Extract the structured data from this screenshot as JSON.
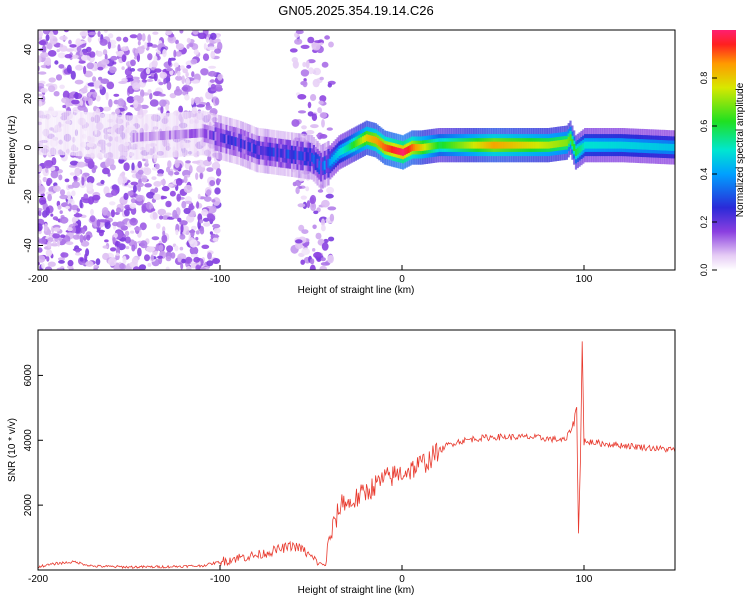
{
  "title": "GN05.2025.354.19.14.C26",
  "top_panel": {
    "xlabel": "Height of straight line (km)",
    "ylabel": "Frequency (Hz)",
    "xticks": [
      "-200",
      "-100",
      "0",
      "100"
    ],
    "yticks": [
      "40",
      "20",
      "0",
      "-20",
      "-40"
    ],
    "colorbar_label": "Normalized spectral amplitude",
    "colorbar_ticks": [
      "0.0",
      "0.2",
      "0.4",
      "0.6",
      "0.8"
    ]
  },
  "bottom_panel": {
    "xlabel": "Height of straight line (km)",
    "ylabel": "SNR (10 * v/v)",
    "xticks": [
      "-200",
      "-100",
      "0",
      "100"
    ],
    "yticks": [
      "6000",
      "4000",
      "2000"
    ]
  },
  "colors": {
    "snr_line": "#e83a2e",
    "axis": "#000000"
  },
  "chart_data": [
    {
      "type": "heatmap",
      "title": "GN05.2025.354.19.14.C26",
      "xlabel": "Height of straight line (km)",
      "ylabel": "Frequency (Hz)",
      "xlim": [
        -200,
        150
      ],
      "ylim": [
        -50,
        48
      ],
      "colorbar": {
        "label": "Normalized spectral amplitude",
        "range": [
          0,
          1
        ]
      },
      "ridge": {
        "description": "peak frequency track",
        "x": [
          -185,
          -150,
          -110,
          -100,
          -90,
          -80,
          -70,
          -60,
          -50,
          -45,
          -40,
          -35,
          -30,
          -25,
          -20,
          -15,
          -10,
          -5,
          0,
          5,
          10,
          20,
          40,
          60,
          80,
          90,
          92,
          95,
          100,
          120,
          150
        ],
        "y": [
          6,
          4,
          6,
          4,
          2,
          -1,
          -2,
          -3,
          -4,
          -8,
          -6,
          -2,
          0,
          2,
          4,
          3,
          0,
          -1,
          -2,
          0,
          0,
          1,
          1,
          1,
          1,
          2,
          4,
          -2,
          1,
          1,
          0
        ]
      },
      "amplitude_profile": {
        "x": [
          -200,
          -110,
          -100,
          -60,
          -45,
          -40,
          -30,
          -20,
          -10,
          0,
          20,
          50,
          90,
          100,
          150
        ],
        "amp": [
          0.08,
          0.15,
          0.25,
          0.3,
          0.35,
          0.4,
          0.55,
          0.8,
          0.9,
          1.0,
          0.6,
          0.85,
          0.7,
          0.5,
          0.45
        ]
      }
    },
    {
      "type": "line",
      "title": "",
      "xlabel": "Height of straight line (km)",
      "ylabel": "SNR (10 * v/v)",
      "xlim": [
        -200,
        150
      ],
      "ylim": [
        0,
        7400
      ],
      "series": [
        {
          "name": "SNR",
          "color": "#e83a2e",
          "x": [
            -200,
            -190,
            -180,
            -170,
            -150,
            -130,
            -110,
            -100,
            -90,
            -80,
            -70,
            -60,
            -55,
            -50,
            -45,
            -42,
            -40,
            -35,
            -32,
            -30,
            -25,
            -20,
            -15,
            -10,
            -5,
            0,
            5,
            10,
            15,
            20,
            25,
            30,
            40,
            50,
            60,
            70,
            80,
            90,
            94,
            96,
            97,
            98,
            99,
            100,
            101,
            103,
            110,
            120,
            130,
            140,
            150
          ],
          "y": [
            100,
            200,
            250,
            120,
            90,
            100,
            130,
            250,
            380,
            450,
            600,
            750,
            650,
            400,
            200,
            150,
            900,
            1800,
            2200,
            2000,
            2200,
            2400,
            2600,
            2800,
            2900,
            3000,
            3100,
            3250,
            3400,
            3650,
            3850,
            3950,
            4050,
            4100,
            4100,
            4100,
            4050,
            4000,
            4500,
            5000,
            1000,
            3500,
            7000,
            4000,
            3900,
            3950,
            3900,
            3850,
            3800,
            3750,
            3700
          ]
        }
      ]
    }
  ]
}
